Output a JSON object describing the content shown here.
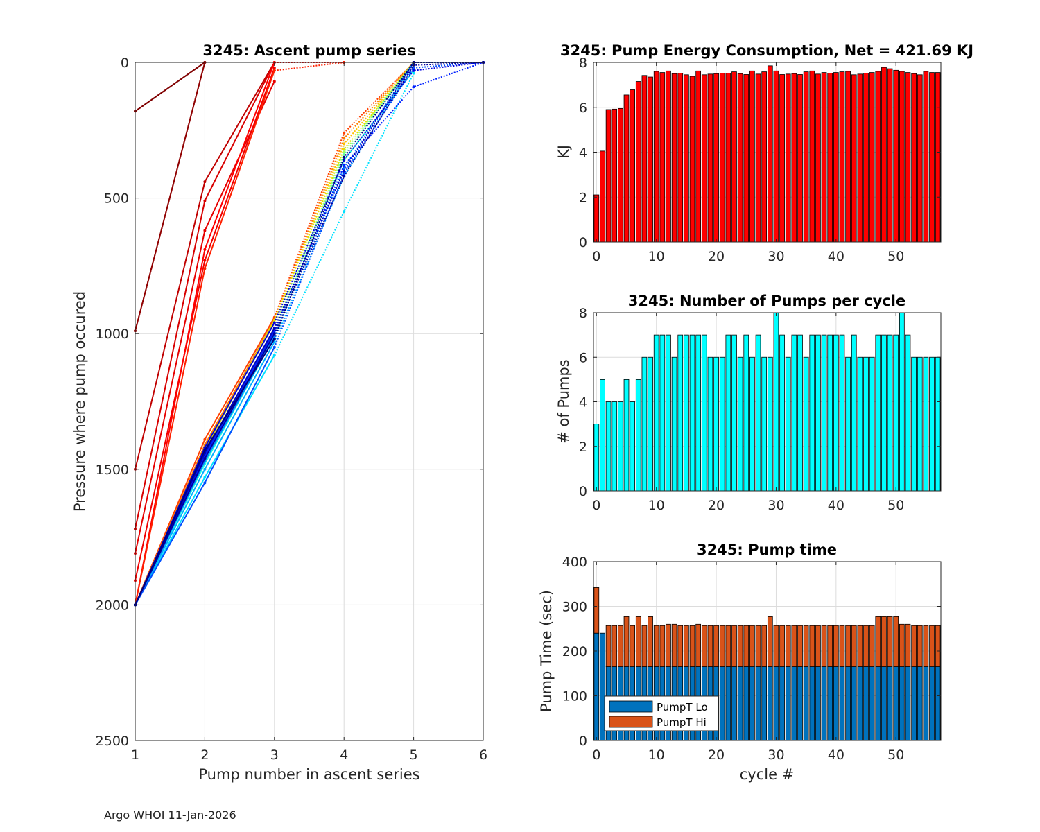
{
  "footer": "Argo WHOI 11-Jan-2026",
  "chart_data": [
    {
      "id": "ascent",
      "type": "line",
      "title": "3245: Ascent pump series",
      "xlabel": "Pump number in ascent series",
      "ylabel": "Pressure where pump occured",
      "xlim": [
        1,
        6
      ],
      "ylim": [
        0,
        2500
      ],
      "y_reversed": true,
      "xticks": [
        1,
        2,
        3,
        4,
        5,
        6
      ],
      "yticks": [
        0,
        500,
        1000,
        1500,
        2000,
        2500
      ],
      "grid": true,
      "colormap": "jet (cycle-ordered, early cycles dark red, later cycles dark blue)",
      "series": [
        {
          "name": "c0",
          "color": "#800000",
          "x": [
            1,
            2
          ],
          "y": [
            180,
            0
          ]
        },
        {
          "name": "c1",
          "color": "#900000",
          "x": [
            1,
            2
          ],
          "y": [
            990,
            0
          ]
        },
        {
          "name": "c2",
          "color": "#c00000",
          "x": [
            1,
            2,
            3
          ],
          "y": [
            1500,
            440,
            0
          ]
        },
        {
          "name": "c3",
          "color": "#d80000",
          "x": [
            1,
            2,
            3
          ],
          "y": [
            1720,
            510,
            0
          ]
        },
        {
          "name": "c4",
          "color": "#e60000",
          "x": [
            1,
            2,
            3
          ],
          "y": [
            1810,
            620,
            70
          ]
        },
        {
          "name": "c5",
          "color": "#f00000",
          "x": [
            1,
            2,
            3
          ],
          "y": [
            1910,
            730,
            20
          ]
        },
        {
          "name": "c6",
          "color": "#ff0000",
          "x": [
            1,
            2,
            3,
            4
          ],
          "y": [
            2000,
            690,
            0,
            0
          ]
        },
        {
          "name": "c7",
          "color": "#ff2000",
          "x": [
            1,
            2,
            3,
            4
          ],
          "y": [
            2000,
            760,
            30,
            0
          ]
        },
        {
          "name": "c8",
          "color": "#ff4000",
          "x": [
            1,
            2,
            3,
            4,
            5
          ],
          "y": [
            2000,
            1390,
            940,
            260,
            0
          ]
        },
        {
          "name": "c9",
          "color": "#ff8000",
          "x": [
            1,
            2,
            3,
            4,
            5
          ],
          "y": [
            2000,
            1410,
            950,
            280,
            0
          ]
        },
        {
          "name": "c10",
          "color": "#ffc000",
          "x": [
            1,
            2,
            3,
            4,
            5
          ],
          "y": [
            2000,
            1420,
            960,
            300,
            0
          ]
        },
        {
          "name": "c11",
          "color": "#e0e000",
          "x": [
            1,
            2,
            3,
            4,
            5
          ],
          "y": [
            2000,
            1430,
            950,
            320,
            0
          ]
        },
        {
          "name": "c12",
          "color": "#a0ff60",
          "x": [
            1,
            2,
            3,
            4,
            5
          ],
          "y": [
            2000,
            1440,
            980,
            330,
            0
          ]
        },
        {
          "name": "c13",
          "color": "#60ff9f",
          "x": [
            1,
            2,
            3,
            4,
            5
          ],
          "y": [
            2000,
            1460,
            1000,
            340,
            0
          ]
        },
        {
          "name": "c14",
          "color": "#20ffdf",
          "x": [
            1,
            2,
            3,
            4,
            5
          ],
          "y": [
            2000,
            1480,
            1010,
            360,
            30
          ]
        },
        {
          "name": "c15",
          "color": "#00e0ff",
          "x": [
            1,
            2,
            3,
            4,
            5
          ],
          "y": [
            2000,
            1530,
            1080,
            550,
            40
          ]
        },
        {
          "name": "c16",
          "color": "#00b0ff",
          "x": [
            1,
            2,
            3,
            4,
            5
          ],
          "y": [
            2000,
            1500,
            1030,
            420,
            0
          ]
        },
        {
          "name": "c17",
          "color": "#0080ff",
          "x": [
            1,
            2,
            3,
            4,
            5,
            6
          ],
          "y": [
            2000,
            1470,
            1010,
            390,
            0,
            0
          ]
        },
        {
          "name": "c18",
          "color": "#0050ff",
          "x": [
            1,
            2,
            3,
            4,
            5,
            6
          ],
          "y": [
            2000,
            1550,
            1050,
            410,
            20,
            0
          ]
        },
        {
          "name": "c19",
          "color": "#0020ff",
          "x": [
            1,
            2,
            3,
            4,
            5,
            6
          ],
          "y": [
            2000,
            1450,
            990,
            380,
            90,
            0
          ]
        },
        {
          "name": "c20",
          "color": "#0000e0",
          "x": [
            1,
            2,
            3,
            4,
            5,
            6
          ],
          "y": [
            2000,
            1420,
            960,
            360,
            30,
            0
          ]
        },
        {
          "name": "c21",
          "color": "#0000c0",
          "x": [
            1,
            2,
            3,
            4,
            5,
            6
          ],
          "y": [
            2000,
            1440,
            980,
            400,
            0,
            0
          ]
        },
        {
          "name": "c22",
          "color": "#0000a0",
          "x": [
            1,
            2,
            3,
            4,
            5,
            6
          ],
          "y": [
            2000,
            1460,
            1000,
            420,
            10,
            0
          ]
        },
        {
          "name": "c23",
          "color": "#000080",
          "x": [
            1,
            2,
            3,
            4,
            5,
            6
          ],
          "y": [
            2000,
            1430,
            1020,
            350,
            0,
            0
          ]
        }
      ]
    },
    {
      "id": "energy",
      "type": "bar",
      "title": "3245: Pump Energy Consumption,  Net = 421.69 KJ",
      "xlabel": "",
      "ylabel": "KJ",
      "xlim": [
        -0.5,
        57.5
      ],
      "ylim": [
        0,
        8
      ],
      "xticks": [
        0,
        10,
        20,
        30,
        40,
        50
      ],
      "yticks": [
        0,
        2,
        4,
        6,
        8
      ],
      "color": "#ff0000",
      "x": [
        0,
        1,
        2,
        3,
        4,
        5,
        6,
        7,
        8,
        9,
        10,
        11,
        12,
        13,
        14,
        15,
        16,
        17,
        18,
        19,
        20,
        21,
        22,
        23,
        24,
        25,
        26,
        27,
        28,
        29,
        30,
        31,
        32,
        33,
        34,
        35,
        36,
        37,
        38,
        39,
        40,
        41,
        42,
        43,
        44,
        45,
        46,
        47,
        48,
        49,
        50,
        51,
        52,
        53,
        54,
        55,
        56,
        57
      ],
      "values": [
        2.1,
        4.05,
        5.9,
        5.92,
        5.95,
        6.55,
        6.78,
        7.15,
        7.42,
        7.35,
        7.6,
        7.55,
        7.62,
        7.5,
        7.52,
        7.45,
        7.38,
        7.62,
        7.45,
        7.48,
        7.5,
        7.52,
        7.52,
        7.58,
        7.5,
        7.46,
        7.62,
        7.48,
        7.58,
        7.85,
        7.62,
        7.46,
        7.48,
        7.5,
        7.46,
        7.58,
        7.62,
        7.48,
        7.55,
        7.52,
        7.55,
        7.58,
        7.6,
        7.45,
        7.48,
        7.52,
        7.55,
        7.6,
        7.78,
        7.72,
        7.65,
        7.6,
        7.55,
        7.5,
        7.45,
        7.6,
        7.55,
        7.55
      ]
    },
    {
      "id": "npumps",
      "type": "bar",
      "title": "3245: Number of Pumps per cycle",
      "xlabel": "",
      "ylabel": "# of Pumps",
      "xlim": [
        -0.5,
        57.5
      ],
      "ylim": [
        0,
        8
      ],
      "xticks": [
        0,
        10,
        20,
        30,
        40,
        50
      ],
      "yticks": [
        0,
        2,
        4,
        6,
        8
      ],
      "color": "#00ffff",
      "x": [
        0,
        1,
        2,
        3,
        4,
        5,
        6,
        7,
        8,
        9,
        10,
        11,
        12,
        13,
        14,
        15,
        16,
        17,
        18,
        19,
        20,
        21,
        22,
        23,
        24,
        25,
        26,
        27,
        28,
        29,
        30,
        31,
        32,
        33,
        34,
        35,
        36,
        37,
        38,
        39,
        40,
        41,
        42,
        43,
        44,
        45,
        46,
        47,
        48,
        49,
        50,
        51,
        52,
        53,
        54,
        55,
        56,
        57
      ],
      "values": [
        3,
        5,
        4,
        4,
        4,
        5,
        4,
        5,
        6,
        6,
        7,
        7,
        7,
        6,
        7,
        7,
        7,
        7,
        7,
        6,
        6,
        6,
        7,
        7,
        6,
        7,
        6,
        7,
        6,
        6,
        8,
        7,
        6,
        7,
        7,
        6,
        7,
        7,
        7,
        7,
        7,
        7,
        6,
        7,
        6,
        6,
        6,
        7,
        7,
        7,
        7,
        8,
        7,
        6,
        6,
        6,
        6,
        6
      ]
    },
    {
      "id": "pumptime",
      "type": "bar",
      "stacked": true,
      "title": "3245: Pump time",
      "xlabel": "cycle #",
      "ylabel": "Pump Time (sec)",
      "xlim": [
        -0.5,
        57.5
      ],
      "ylim": [
        0,
        400
      ],
      "xticks": [
        0,
        10,
        20,
        30,
        40,
        50
      ],
      "yticks": [
        0,
        100,
        200,
        300,
        400
      ],
      "legend": "bottom-left",
      "x": [
        0,
        1,
        2,
        3,
        4,
        5,
        6,
        7,
        8,
        9,
        10,
        11,
        12,
        13,
        14,
        15,
        16,
        17,
        18,
        19,
        20,
        21,
        22,
        23,
        24,
        25,
        26,
        27,
        28,
        29,
        30,
        31,
        32,
        33,
        34,
        35,
        36,
        37,
        38,
        39,
        40,
        41,
        42,
        43,
        44,
        45,
        46,
        47,
        48,
        49,
        50,
        51,
        52,
        53,
        54,
        55,
        56,
        57
      ],
      "series": [
        {
          "name": "PumpT Lo",
          "color": "#0072bd",
          "values": [
            240,
            240,
            165,
            165,
            165,
            165,
            165,
            165,
            165,
            165,
            165,
            165,
            165,
            165,
            165,
            165,
            165,
            165,
            165,
            165,
            165,
            165,
            165,
            165,
            165,
            165,
            165,
            165,
            165,
            165,
            165,
            165,
            165,
            165,
            165,
            165,
            165,
            165,
            165,
            165,
            165,
            165,
            165,
            165,
            165,
            165,
            165,
            165,
            165,
            165,
            165,
            165,
            165,
            165,
            165,
            165,
            165,
            165
          ]
        },
        {
          "name": "PumpT Hi",
          "color": "#d95319",
          "values": [
            102,
            0,
            92,
            92,
            92,
            112,
            92,
            112,
            92,
            112,
            92,
            92,
            95,
            95,
            92,
            92,
            92,
            95,
            92,
            92,
            92,
            92,
            92,
            92,
            92,
            92,
            92,
            92,
            92,
            112,
            92,
            92,
            92,
            92,
            92,
            92,
            92,
            92,
            92,
            92,
            92,
            92,
            92,
            92,
            92,
            92,
            92,
            112,
            112,
            112,
            112,
            95,
            95,
            92,
            92,
            92,
            92,
            92
          ]
        }
      ]
    }
  ]
}
